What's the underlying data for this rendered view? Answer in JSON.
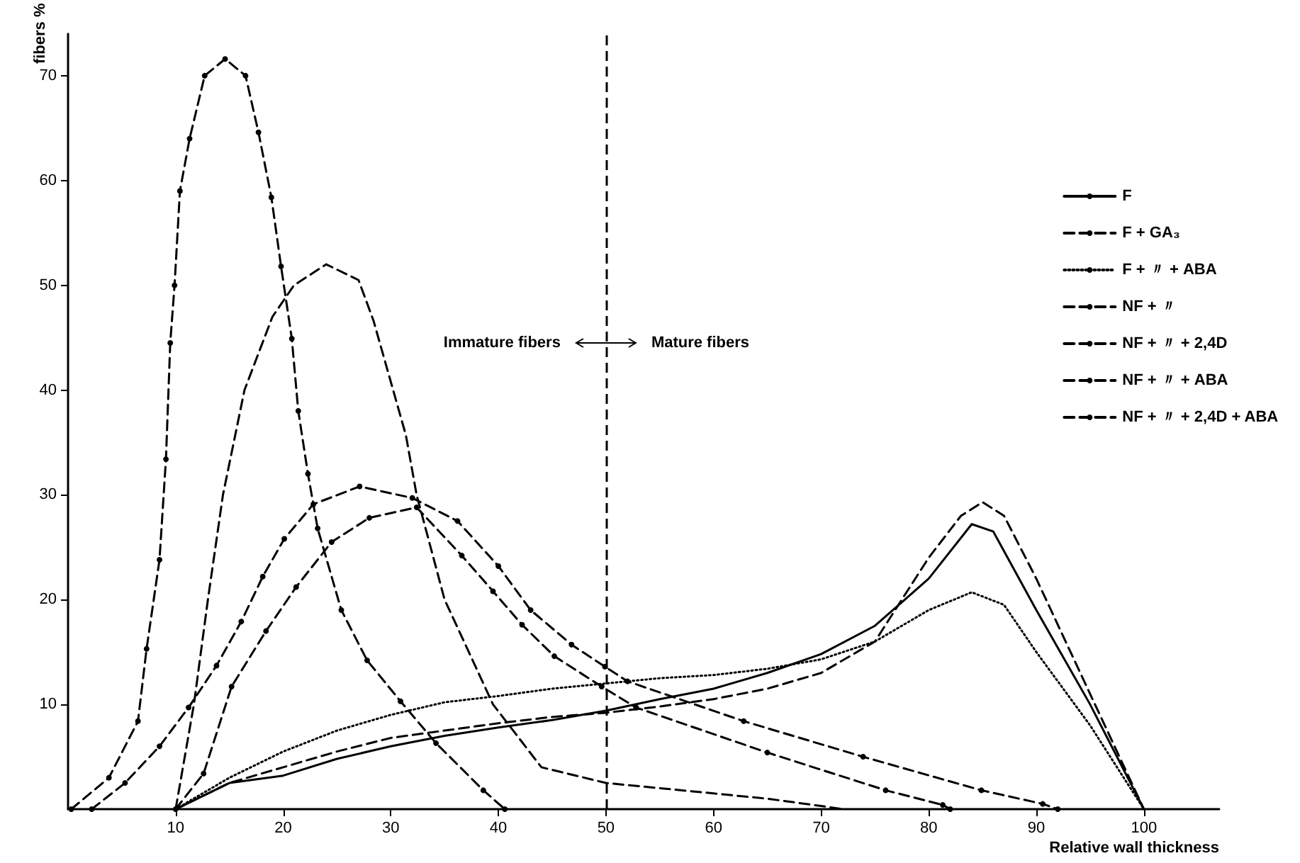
{
  "chart_data": {
    "type": "line",
    "xlabel": "Relative wall thickness",
    "ylabel": "fibers %",
    "xlim": [
      0,
      107
    ],
    "xticks": [
      10,
      20,
      30,
      40,
      50,
      60,
      70,
      80,
      90,
      100
    ],
    "ylim": [
      0,
      74
    ],
    "yticks": [
      10,
      20,
      30,
      40,
      50,
      60,
      70
    ],
    "grid": false,
    "legend": "right",
    "marker": "none",
    "series": [
      {
        "name": "F",
        "color": "#000000",
        "line_style": "solid",
        "x": [
          10,
          15,
          20,
          25,
          30,
          35,
          40,
          45,
          50,
          55,
          60,
          65,
          70,
          75,
          80,
          84,
          86,
          90,
          95,
          100
        ],
        "values": [
          0,
          2.5,
          3.2,
          4.8,
          6,
          7,
          7.8,
          8.5,
          9.4,
          10.5,
          11.5,
          13,
          14.8,
          17.5,
          22,
          27.2,
          26.5,
          19,
          10,
          0
        ]
      },
      {
        "name": "F + GA₃",
        "color": "#000000",
        "line_style": "dashed",
        "x": [
          10,
          15,
          20,
          25,
          30,
          35,
          40,
          45,
          50,
          55,
          60,
          65,
          70,
          75,
          80,
          83,
          85,
          87,
          90,
          95,
          100
        ],
        "values": [
          0,
          2.5,
          4,
          5.5,
          6.8,
          7.5,
          8.2,
          8.8,
          9.2,
          9.8,
          10.5,
          11.5,
          13,
          16,
          24,
          28,
          29.3,
          28,
          22,
          11,
          0
        ]
      },
      {
        "name": "F + 〃 + ABA",
        "color": "#000000",
        "line_style": "dotted",
        "x": [
          10,
          15,
          20,
          25,
          30,
          35,
          40,
          45,
          50,
          55,
          60,
          65,
          70,
          75,
          80,
          84,
          87,
          90,
          95,
          100
        ],
        "values": [
          0,
          3,
          5.5,
          7.5,
          9,
          10.2,
          10.8,
          11.5,
          12,
          12.5,
          12.8,
          13.4,
          14.3,
          16,
          19,
          20.7,
          19.5,
          15,
          8,
          0
        ]
      },
      {
        "name": "NF + 〃",
        "color": "#000000",
        "line_style": "dashed",
        "x": [
          10,
          11.7,
          13,
          14.4,
          16.4,
          19,
          21,
          24,
          27,
          28.4,
          31.4,
          32.4,
          35,
          39.5,
          44,
          50,
          55,
          60,
          65,
          70,
          72
        ],
        "values": [
          0,
          10,
          20,
          30,
          40,
          47,
          50,
          52,
          50.5,
          46.6,
          35.7,
          30,
          20,
          10,
          4,
          2.5,
          2,
          1.5,
          1,
          0.3,
          0
        ]
      },
      {
        "name": "NF + 〃 + 2,4D",
        "color": "#000000",
        "line_style": "dashed",
        "marker": "circle",
        "x": [
          0.3,
          3.8,
          6.5,
          7.3,
          8.5,
          9.1,
          9.5,
          9.9,
          10.4,
          11.3,
          12.7,
          14.6,
          16.5,
          17.7,
          18.9,
          19.8,
          20.8,
          21.4,
          22.3,
          23.2,
          25.4,
          27.8,
          30.9,
          34.2,
          38.6,
          40.6
        ],
        "values": [
          0,
          3,
          8.4,
          15.3,
          23.8,
          33.4,
          44.5,
          50,
          59,
          64,
          70,
          71.6,
          70,
          64.6,
          58.4,
          51.8,
          44.9,
          38,
          32,
          26.8,
          19,
          14.2,
          10.3,
          6.3,
          1.8,
          0
        ]
      },
      {
        "name": "NF + 〃 + ABA",
        "color": "#000000",
        "line_style": "dashed",
        "marker": "circle",
        "x": [
          10,
          12.6,
          15.2,
          18.4,
          21.2,
          24.5,
          28,
          32.4,
          36.6,
          39.5,
          42.2,
          45.2,
          49.6,
          52.8,
          65,
          76,
          81.3,
          82
        ],
        "values": [
          0,
          3.4,
          11.7,
          17,
          21.2,
          25.5,
          27.8,
          28.8,
          24.2,
          20.8,
          17.6,
          14.6,
          11.7,
          9.7,
          5.4,
          1.8,
          0.4,
          0
        ]
      },
      {
        "name": "NF + 〃 + 2,4D + ABA",
        "color": "#000000",
        "line_style": "dashed",
        "marker": "circle",
        "x": [
          2.2,
          5.3,
          8.5,
          11.2,
          13.8,
          16.1,
          18.1,
          20.1,
          22.8,
          27.1,
          32,
          36.2,
          40,
          43,
          46.8,
          49.9,
          52,
          62.8,
          73.9,
          84.9,
          90.6,
          92
        ],
        "values": [
          0,
          2.5,
          6,
          9.7,
          13.7,
          17.9,
          22.2,
          25.8,
          29.1,
          30.8,
          29.7,
          27.5,
          23.2,
          19,
          15.7,
          13.6,
          12.2,
          8.4,
          5,
          1.8,
          0.5,
          0
        ]
      }
    ],
    "ref_lines": [
      {
        "axis": "x",
        "value": 50,
        "line_style": "dashed",
        "color": "#000000"
      }
    ],
    "annotations": [
      "Immature fibers",
      "Mature fibers"
    ]
  }
}
